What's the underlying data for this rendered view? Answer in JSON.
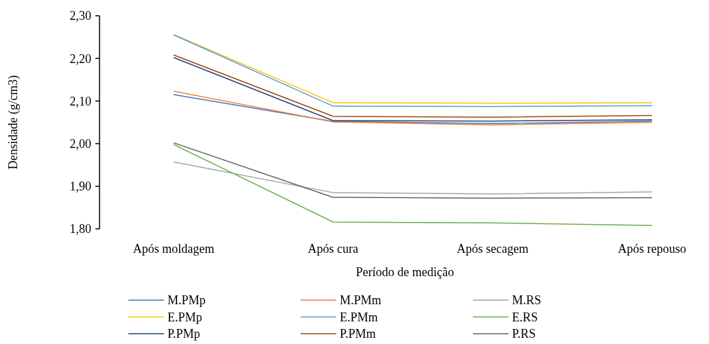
{
  "chart_data": {
    "type": "line",
    "xlabel": "Período de medição",
    "ylabel": "Densidade (g/cm3)",
    "categories": [
      "Após moldagem",
      "Após cura",
      "Após secagem",
      "Após repouso"
    ],
    "ylim": [
      1.8,
      2.3
    ],
    "yticks": [
      {
        "value": 1.8,
        "label": "1,80"
      },
      {
        "value": 1.9,
        "label": "1,90"
      },
      {
        "value": 2.0,
        "label": "2,00"
      },
      {
        "value": 2.1,
        "label": "2,10"
      },
      {
        "value": 2.2,
        "label": "2,20"
      },
      {
        "value": 2.3,
        "label": "2,30"
      }
    ],
    "legend": "bottom",
    "grid": false,
    "marker": "none",
    "line_style": "solid",
    "series": [
      {
        "name": "M.PMp",
        "color": "#4472c4",
        "values": [
          2.115,
          2.052,
          2.047,
          2.053
        ]
      },
      {
        "name": "M.PMm",
        "color": "#ed7d31",
        "values": [
          2.123,
          2.051,
          2.044,
          2.05
        ]
      },
      {
        "name": "M.RS",
        "color": "#a5a5a5",
        "values": [
          1.957,
          1.885,
          1.882,
          1.887
        ]
      },
      {
        "name": "E.PMp",
        "color": "#ffc000",
        "values": [
          2.256,
          2.096,
          2.095,
          2.096
        ]
      },
      {
        "name": "E.PMm",
        "color": "#5b9bd5",
        "values": [
          2.255,
          2.088,
          2.087,
          2.089
        ]
      },
      {
        "name": "E.RS",
        "color": "#70ad47",
        "values": [
          1.998,
          1.816,
          1.814,
          1.808
        ]
      },
      {
        "name": "P.PMp",
        "color": "#264478",
        "values": [
          2.202,
          2.054,
          2.053,
          2.056
        ]
      },
      {
        "name": "P.PMm",
        "color": "#9e480e",
        "values": [
          2.208,
          2.064,
          2.062,
          2.066
        ]
      },
      {
        "name": "P.RS",
        "color": "#636363",
        "values": [
          2.002,
          1.874,
          1.872,
          1.873
        ]
      }
    ]
  }
}
